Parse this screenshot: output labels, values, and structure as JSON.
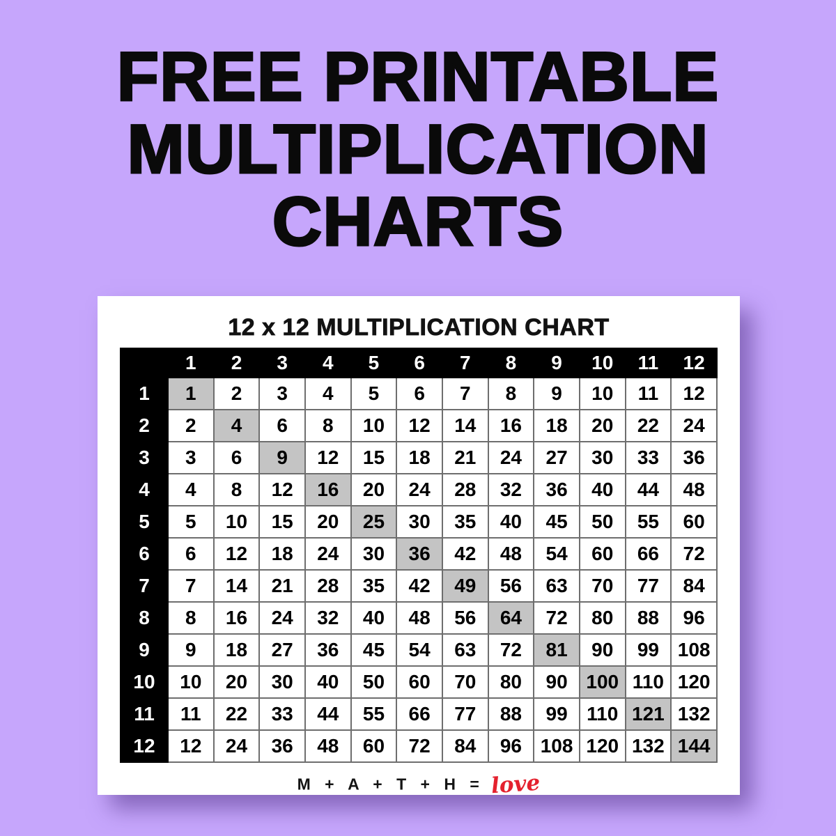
{
  "page": {
    "background_color": "#C6A6FC",
    "heading_lines": [
      "FREE PRINTABLE",
      "MULTIPLICATION",
      "CHARTS"
    ]
  },
  "card": {
    "footer_math": "M + A + T + H =",
    "footer_love": "love",
    "footer_love_color": "#E4212E"
  },
  "chart_data": {
    "type": "table",
    "title": "12 x 12 MULTIPLICATION CHART",
    "column_headers": [
      "1",
      "2",
      "3",
      "4",
      "5",
      "6",
      "7",
      "8",
      "9",
      "10",
      "11",
      "12"
    ],
    "row_headers": [
      "1",
      "2",
      "3",
      "4",
      "5",
      "6",
      "7",
      "8",
      "9",
      "10",
      "11",
      "12"
    ],
    "rows": [
      [
        1,
        2,
        3,
        4,
        5,
        6,
        7,
        8,
        9,
        10,
        11,
        12
      ],
      [
        2,
        4,
        6,
        8,
        10,
        12,
        14,
        16,
        18,
        20,
        22,
        24
      ],
      [
        3,
        6,
        9,
        12,
        15,
        18,
        21,
        24,
        27,
        30,
        33,
        36
      ],
      [
        4,
        8,
        12,
        16,
        20,
        24,
        28,
        32,
        36,
        40,
        44,
        48
      ],
      [
        5,
        10,
        15,
        20,
        25,
        30,
        35,
        40,
        45,
        50,
        55,
        60
      ],
      [
        6,
        12,
        18,
        24,
        30,
        36,
        42,
        48,
        54,
        60,
        66,
        72
      ],
      [
        7,
        14,
        21,
        28,
        35,
        42,
        49,
        56,
        63,
        70,
        77,
        84
      ],
      [
        8,
        16,
        24,
        32,
        40,
        48,
        56,
        64,
        72,
        80,
        88,
        96
      ],
      [
        9,
        18,
        27,
        36,
        45,
        54,
        63,
        72,
        81,
        90,
        99,
        108
      ],
      [
        10,
        20,
        30,
        40,
        50,
        60,
        70,
        80,
        90,
        100,
        110,
        120
      ],
      [
        11,
        22,
        33,
        44,
        55,
        66,
        77,
        88,
        99,
        110,
        121,
        132
      ],
      [
        12,
        24,
        36,
        48,
        60,
        72,
        84,
        96,
        108,
        120,
        132,
        144
      ]
    ],
    "highlight_rule": "diagonal perfect squares (row index equals column index)",
    "highlight_color": "#C4C4C4",
    "header_background": "#000000",
    "header_text_color": "#FFFFFF",
    "grid_on": true
  }
}
